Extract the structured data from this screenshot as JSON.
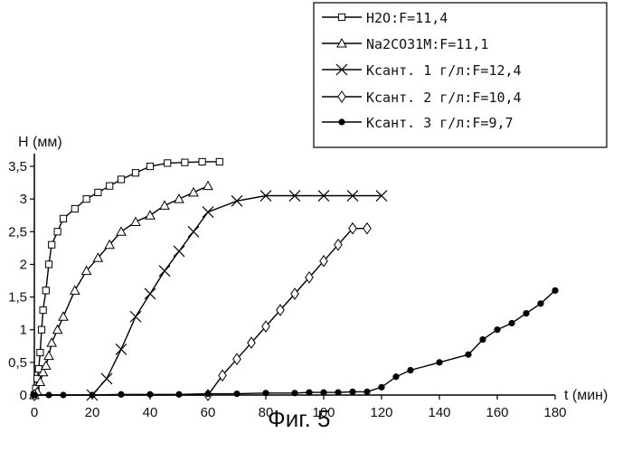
{
  "chart_data": {
    "type": "line",
    "xlabel": "t (мин)",
    "ylabel": "H (мм)",
    "xlim": [
      0,
      180
    ],
    "ylim": [
      0,
      3.5
    ],
    "xticks": [
      0,
      20,
      40,
      60,
      80,
      100,
      120,
      140,
      160,
      180
    ],
    "yticks": [
      "0",
      "0,5",
      "1",
      "1,5",
      "2",
      "2,5",
      "3",
      "3,5"
    ],
    "caption": "Фиг. 5",
    "legend_position": "top-right",
    "series": [
      {
        "name": "H2O:F=11,4",
        "marker": "square",
        "x": [
          0,
          0.5,
          1,
          1.5,
          2,
          2.5,
          3,
          4,
          5,
          6,
          8,
          10,
          14,
          18,
          22,
          26,
          30,
          35,
          40,
          46,
          52,
          58,
          64
        ],
        "y": [
          0,
          0.1,
          0.25,
          0.4,
          0.65,
          1.0,
          1.3,
          1.6,
          2.0,
          2.3,
          2.5,
          2.7,
          2.85,
          3.0,
          3.1,
          3.2,
          3.3,
          3.4,
          3.5,
          3.55,
          3.56,
          3.57,
          3.57
        ]
      },
      {
        "name": "Na2CO31M:F=11,1",
        "marker": "triangle",
        "x": [
          0,
          1,
          2,
          3,
          4,
          5,
          6,
          8,
          10,
          14,
          18,
          22,
          26,
          30,
          35,
          40,
          45,
          50,
          55,
          60
        ],
        "y": [
          0,
          0.05,
          0.2,
          0.35,
          0.45,
          0.6,
          0.8,
          1.0,
          1.2,
          1.6,
          1.9,
          2.1,
          2.3,
          2.5,
          2.65,
          2.75,
          2.9,
          3.0,
          3.1,
          3.2
        ]
      },
      {
        "name": "Ксант. 1 г/л:F=12,4",
        "marker": "x",
        "x": [
          20,
          25,
          30,
          35,
          40,
          45,
          50,
          55,
          60,
          70,
          80,
          90,
          100,
          110,
          120
        ],
        "y": [
          0,
          0.25,
          0.7,
          1.2,
          1.55,
          1.9,
          2.2,
          2.5,
          2.8,
          2.97,
          3.05,
          3.05,
          3.05,
          3.05,
          3.05
        ]
      },
      {
        "name": "Ксант. 2 г/л:F=10,4",
        "marker": "diamond",
        "x": [
          0,
          60,
          65,
          70,
          75,
          80,
          85,
          90,
          95,
          100,
          105,
          110,
          115
        ],
        "y": [
          0,
          0,
          0.3,
          0.55,
          0.8,
          1.05,
          1.3,
          1.55,
          1.8,
          2.05,
          2.3,
          2.55,
          2.55
        ]
      },
      {
        "name": "Ксант. 3 г/л:F=9,7",
        "marker": "circle",
        "x": [
          0,
          5,
          10,
          20,
          30,
          40,
          50,
          60,
          70,
          80,
          90,
          95,
          100,
          105,
          110,
          115,
          120,
          125,
          130,
          140,
          150,
          155,
          160,
          165,
          170,
          175,
          180
        ],
        "y": [
          0,
          0,
          0,
          0,
          0.01,
          0.01,
          0.01,
          0.02,
          0.02,
          0.03,
          0.03,
          0.04,
          0.04,
          0.04,
          0.05,
          0.05,
          0.12,
          0.28,
          0.38,
          0.5,
          0.62,
          0.85,
          1.0,
          1.1,
          1.25,
          1.4,
          1.6
        ]
      }
    ]
  }
}
